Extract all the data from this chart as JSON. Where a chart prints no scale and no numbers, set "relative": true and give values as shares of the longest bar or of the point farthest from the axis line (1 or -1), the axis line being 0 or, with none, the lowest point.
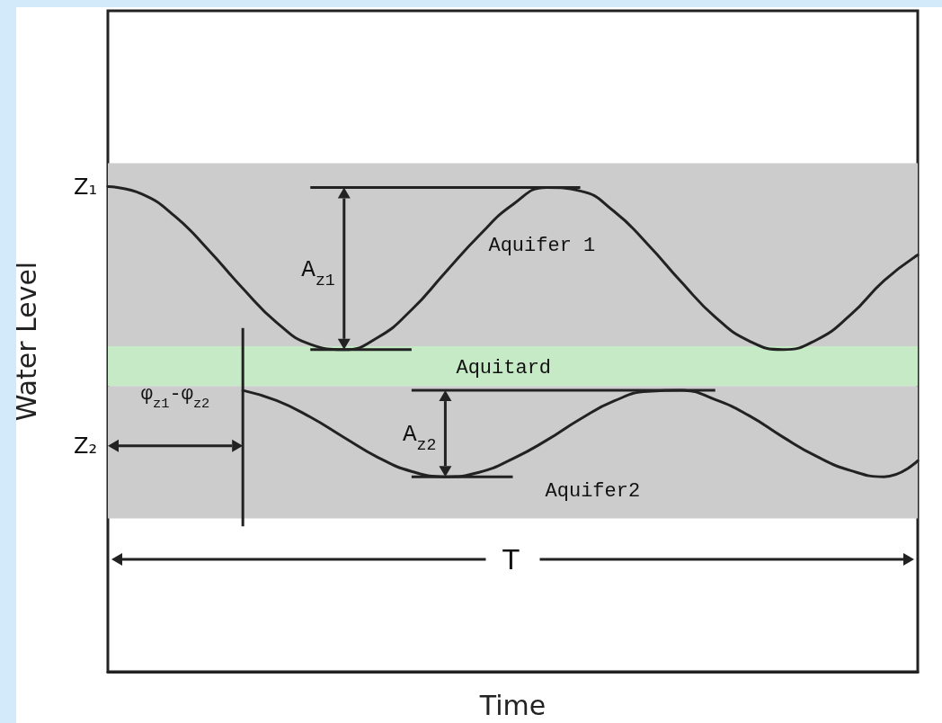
{
  "chart_data": {
    "type": "line",
    "relative": true,
    "xlabel": "Time",
    "ylabel": "Water Level",
    "categories": [
      null,
      null,
      null,
      null,
      null,
      null,
      null,
      null,
      null,
      null,
      null,
      null,
      null,
      null,
      null,
      null,
      null,
      null,
      null,
      null,
      null,
      null,
      null,
      null,
      null
    ],
    "series": [
      {
        "color": "#222222",
        "values": [
          1.0,
          0.985,
          0.938,
          0.868,
          0.79,
          0.72,
          0.675,
          0.664,
          0.689,
          0.746,
          0.823,
          0.899,
          0.963,
          0.998,
          0.991,
          0.949,
          0.881,
          0.803,
          0.731,
          0.682,
          0.664,
          0.684,
          0.735,
          0.806,
          0.859
        ]
      },
      {
        "color": "#222222",
        "values": [
          null,
          null,
          null,
          null,
          0.58,
          0.559,
          0.525,
          0.483,
          0.442,
          0.413,
          0.402,
          0.411,
          0.439,
          0.477,
          0.521,
          0.558,
          0.578,
          0.58,
          0.561,
          0.528,
          0.484,
          0.444,
          0.415,
          0.402,
          0.435
        ]
      }
    ],
    "bands": [
      {
        "axis": "y",
        "from": 0.671,
        "to": 1.048,
        "label": "Aquifer 1",
        "color": "#cccccc"
      },
      {
        "axis": "y",
        "from": 0.589,
        "to": 0.671,
        "label": "Aquitard",
        "color": "#c6eac6"
      },
      {
        "axis": "y",
        "from": 0.316,
        "to": 0.589,
        "label": "Aquifer2",
        "color": "#cccccc"
      }
    ],
    "annotations": [
      "Z₁",
      "Z₂",
      "A$_{z1}$",
      "A$_{z2}$",
      "φ$_{z1}$-φ$_{z2}$",
      "T"
    ],
    "grid": false,
    "marker": "none",
    "line_style": "solid"
  }
}
